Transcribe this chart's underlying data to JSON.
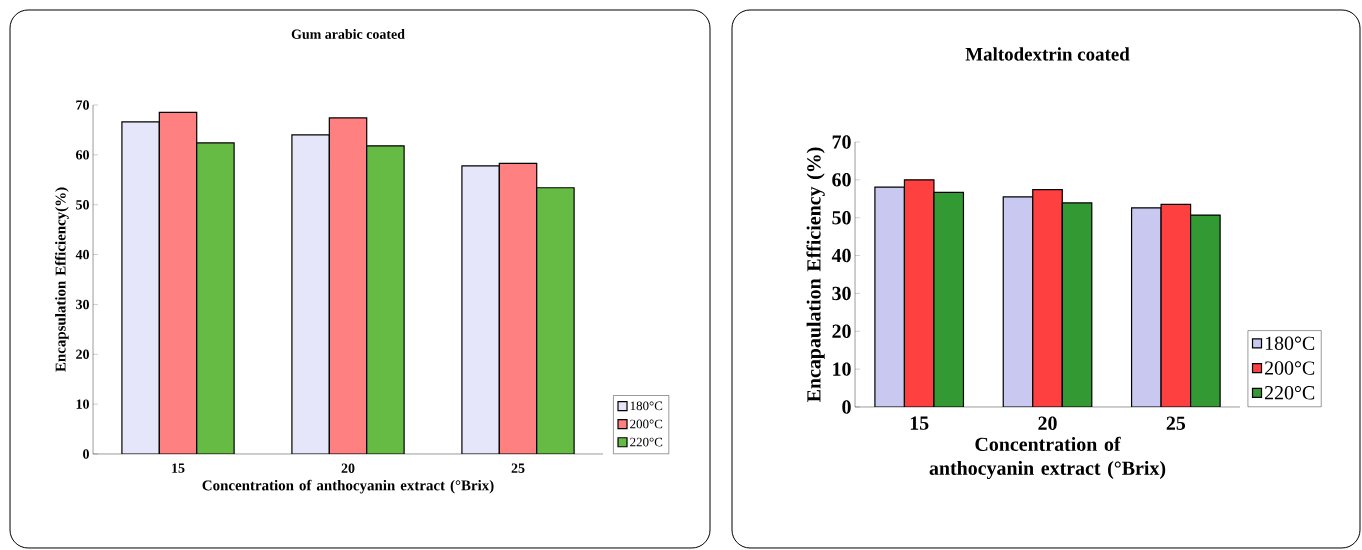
{
  "chart_data": [
    {
      "type": "bar",
      "title": "Gum arabic coated",
      "xlabel": "Concentration of anthocyanin extract (°Brix)",
      "ylabel": "Encapsulation Efficiency(%)",
      "categories": [
        "15",
        "20",
        "25"
      ],
      "series": [
        {
          "name": "180°C",
          "color": "#e6e6fa",
          "values": [
            66.6,
            64.0,
            57.8
          ]
        },
        {
          "name": "200°C",
          "color": "#ff8080",
          "values": [
            68.5,
            67.4,
            58.3
          ]
        },
        {
          "name": "220°C",
          "color": "#66bb44",
          "values": [
            62.4,
            61.8,
            53.4
          ]
        }
      ],
      "ylim": [
        0,
        70
      ],
      "yticks": [
        0,
        10,
        20,
        30,
        40,
        50,
        60,
        70
      ],
      "legend": "right"
    },
    {
      "type": "bar",
      "title": "Maltodextrin coated",
      "xlabel": "Concentration of anthocyanin extract (°Brix)",
      "ylabel": "Encapaulation Efficiency (%)",
      "categories": [
        "15",
        "20",
        "25"
      ],
      "series": [
        {
          "name": "180°C",
          "color": "#c8c8f0",
          "values": [
            58.1,
            55.5,
            52.6
          ]
        },
        {
          "name": "200°C",
          "color": "#ff4040",
          "values": [
            60.0,
            57.4,
            53.5
          ]
        },
        {
          "name": "220°C",
          "color": "#339933",
          "values": [
            56.7,
            53.9,
            50.7
          ]
        }
      ],
      "ylim": [
        0,
        70
      ],
      "yticks": [
        0,
        10,
        20,
        30,
        40,
        50,
        60,
        70
      ],
      "legend": "right"
    }
  ]
}
